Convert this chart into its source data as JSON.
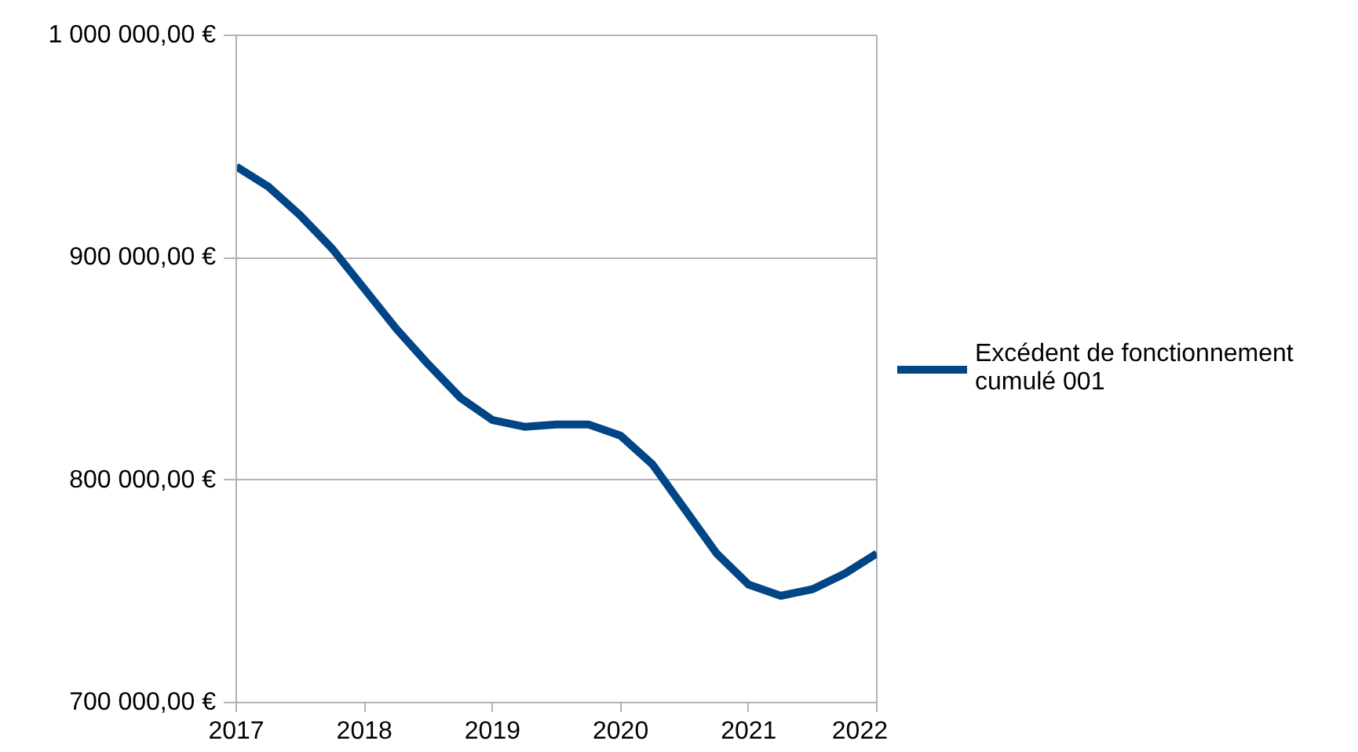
{
  "chart_data": {
    "type": "line",
    "x": [
      2017,
      2017.25,
      2017.5,
      2017.75,
      2018,
      2018.25,
      2018.5,
      2018.75,
      2019,
      2019.25,
      2019.5,
      2019.75,
      2020,
      2020.25,
      2020.5,
      2020.75,
      2021,
      2021.25,
      2021.5,
      2021.75,
      2022
    ],
    "series": [
      {
        "name": "Excédent de fonctionnement cumulé 001",
        "color": "#004586",
        "values": [
          941000,
          932000,
          919000,
          904000,
          886000,
          868000,
          852000,
          837000,
          827000,
          824000,
          825000,
          825000,
          820000,
          807000,
          787000,
          767000,
          753000,
          748000,
          751000,
          758000,
          767000
        ]
      }
    ],
    "xlim": [
      2017,
      2022
    ],
    "xticks": [
      2017,
      2018,
      2019,
      2020,
      2021,
      2022
    ],
    "ylim": [
      700000,
      1000000
    ],
    "yticks": [
      {
        "value": 700000,
        "label": "700 000,00 €"
      },
      {
        "value": 800000,
        "label": "800 000,00 €"
      },
      {
        "value": 900000,
        "label": "900 000,00 €"
      },
      {
        "value": 1000000,
        "label": "1 000 000,00 €"
      }
    ],
    "grid": "y",
    "legend": "right",
    "marker": "none",
    "line_style": "solid"
  }
}
